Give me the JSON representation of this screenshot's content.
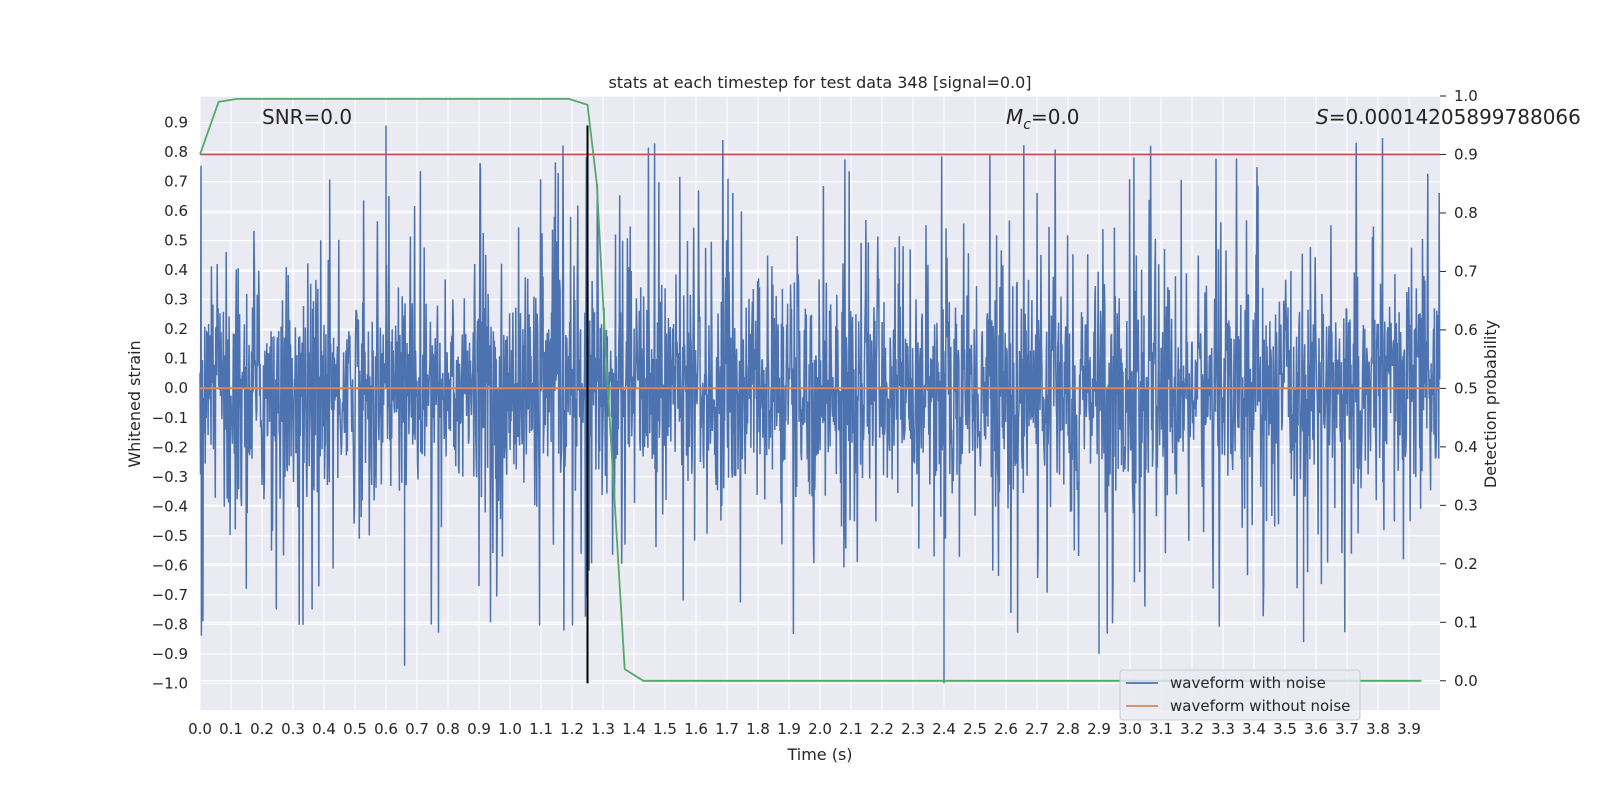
{
  "chart_data": {
    "type": "line",
    "title": "stats at each timestep for test data 348 [signal=0.0]",
    "xlabel": "Time (s)",
    "ylabel": "Whitened strain",
    "y2label": "Detection probability",
    "xlim": [
      0.0,
      4.0
    ],
    "ylim": [
      -1.09,
      0.99
    ],
    "y2lim": [
      -0.05,
      1.0
    ],
    "x_ticks": [
      "0.0",
      "0.1",
      "0.2",
      "0.3",
      "0.4",
      "0.5",
      "0.6",
      "0.7",
      "0.8",
      "0.9",
      "1.0",
      "1.1",
      "1.2",
      "1.3",
      "1.4",
      "1.5",
      "1.6",
      "1.7",
      "1.8",
      "1.9",
      "2.0",
      "2.1",
      "2.2",
      "2.3",
      "2.4",
      "2.5",
      "2.6",
      "2.7",
      "2.8",
      "2.9",
      "3.0",
      "3.1",
      "3.2",
      "3.3",
      "3.4",
      "3.5",
      "3.6",
      "3.7",
      "3.8",
      "3.9"
    ],
    "y_ticks": [
      "0.9",
      "0.8",
      "0.7",
      "0.6",
      "0.5",
      "0.4",
      "0.3",
      "0.2",
      "0.1",
      "0.0",
      "−0.1",
      "−0.2",
      "−0.3",
      "−0.4",
      "−0.5",
      "−0.6",
      "−0.7",
      "−0.8",
      "−0.9",
      "−1.0"
    ],
    "y2_ticks": [
      "1.0",
      "0.9",
      "0.8",
      "0.7",
      "0.6",
      "0.5",
      "0.4",
      "0.3",
      "0.2",
      "0.1",
      "0.0"
    ],
    "grid": true,
    "annotations": {
      "snr": "SNR=0.0",
      "mc_symbol": "M",
      "mc_sub": "c",
      "mc_value": "=0.0",
      "s_symbol": "S",
      "s_value": "=0.00014205899788066"
    },
    "series": [
      {
        "name": "waveform with noise",
        "axis": "left",
        "color": "#4c72b0",
        "note": "dense noise trace, amplitude roughly ±0.45 with spikes to 0.89 and -1.0"
      },
      {
        "name": "waveform without noise",
        "axis": "left",
        "color": "#dd8452",
        "x": [
          0.0,
          4.0
        ],
        "y": [
          0.0,
          0.0
        ]
      },
      {
        "axis": "right",
        "color": "#55a868",
        "x": [
          0.0,
          0.06,
          0.12,
          0.2,
          0.4,
          0.6,
          0.8,
          1.0,
          1.19,
          1.25,
          1.28,
          1.31,
          1.37,
          1.43,
          1.5,
          2.0,
          2.5,
          3.0,
          3.5,
          3.94
        ],
        "y": [
          0.9,
          0.99,
          0.995,
          0.995,
          0.995,
          0.995,
          0.995,
          0.995,
          0.995,
          0.985,
          0.85,
          0.55,
          0.02,
          0.0,
          0.0,
          0.0,
          0.0,
          0.0,
          0.0,
          0.0
        ]
      },
      {
        "axis": "right",
        "color": "#c44e52",
        "type": "hline",
        "y": 0.9
      }
    ],
    "vline": {
      "x": 1.25,
      "y_from": -1.0,
      "y_to": 0.89,
      "color": "#000000"
    },
    "legend": {
      "placement": "bottom-right",
      "entries": [
        "waveform with noise",
        "waveform without noise"
      ]
    }
  }
}
